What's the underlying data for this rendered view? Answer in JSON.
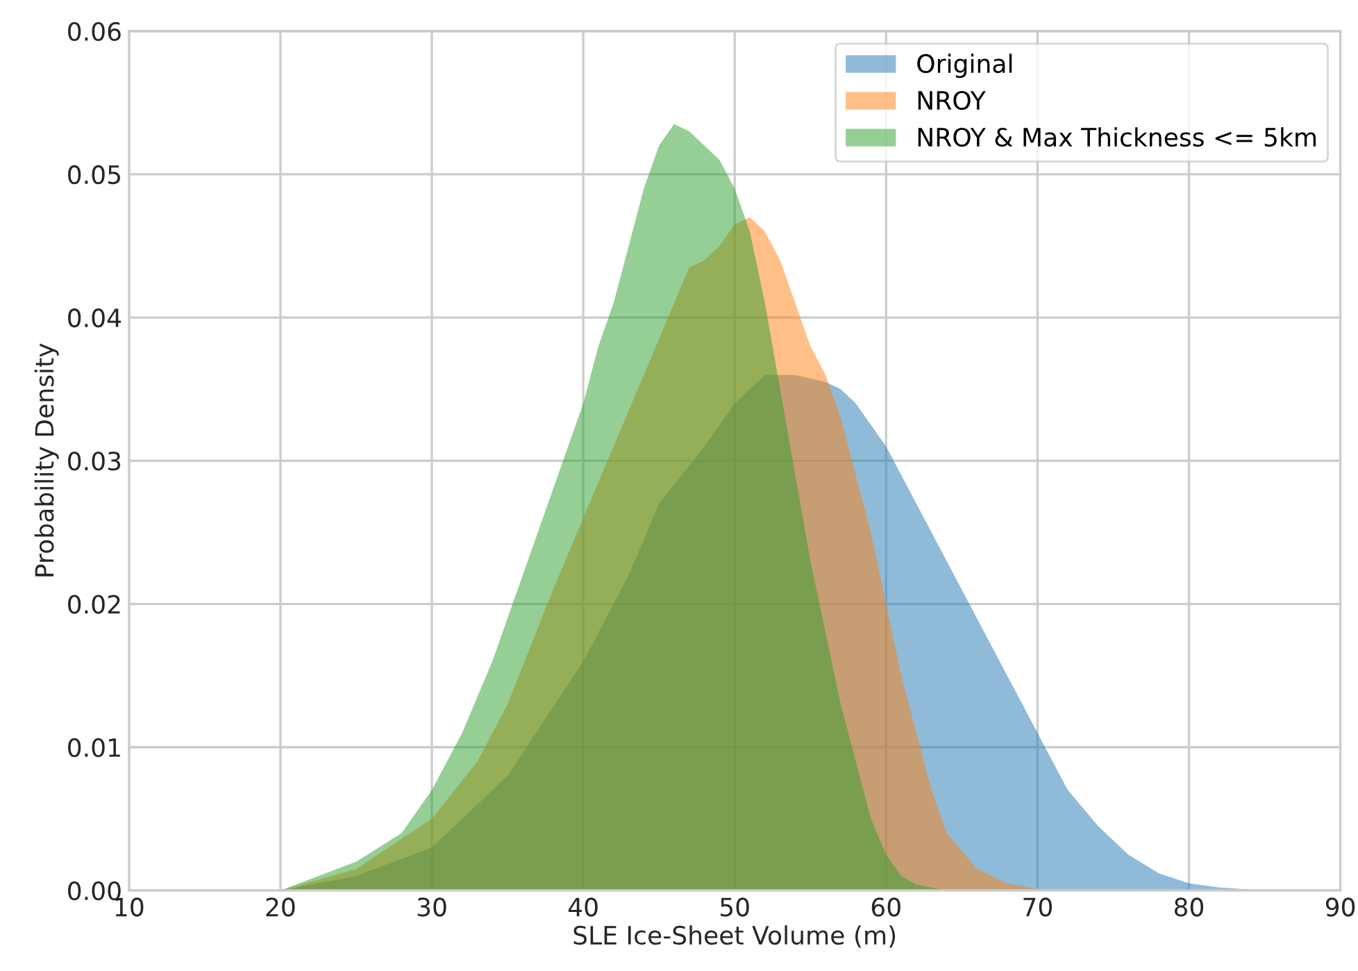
{
  "chart_data": {
    "type": "area",
    "xlabel": "SLE Ice-Sheet Volume (m)",
    "ylabel": "Probability Density",
    "xlim": [
      10,
      90
    ],
    "xticks": [
      10,
      20,
      30,
      40,
      50,
      60,
      70,
      80,
      90
    ],
    "ylim": [
      0,
      0.06
    ],
    "yticks": [
      {
        "value": 0,
        "label": "0.00"
      },
      {
        "value": 0.01,
        "label": "0.01"
      },
      {
        "value": 0.02,
        "label": "0.02"
      },
      {
        "value": 0.03,
        "label": "0.03"
      },
      {
        "value": 0.04,
        "label": "0.04"
      },
      {
        "value": 0.05,
        "label": "0.05"
      },
      {
        "value": 0.06,
        "label": "0.06"
      }
    ],
    "grid": true,
    "legend": "top right",
    "series": [
      {
        "name": "Original",
        "color": "#1f77b4",
        "x": [
          20,
          25,
          30,
          35,
          40,
          43,
          45,
          48,
          50,
          52,
          54,
          56,
          57,
          58,
          60,
          62,
          64,
          66,
          68,
          70,
          72,
          74,
          76,
          78,
          80,
          82,
          85
        ],
        "values": [
          0,
          0.001,
          0.003,
          0.008,
          0.016,
          0.022,
          0.027,
          0.031,
          0.034,
          0.036,
          0.036,
          0.0355,
          0.035,
          0.034,
          0.031,
          0.027,
          0.023,
          0.019,
          0.015,
          0.011,
          0.007,
          0.0045,
          0.0025,
          0.0012,
          0.0005,
          0.0002,
          0
        ]
      },
      {
        "name": "NROY",
        "color": "#ff7f0e",
        "x": [
          20,
          25,
          30,
          33,
          35,
          38,
          40,
          42,
          44,
          46,
          47,
          48,
          49,
          50,
          51,
          52,
          53,
          54,
          55,
          56,
          57,
          58,
          59,
          60,
          61,
          62,
          63,
          64,
          66,
          68,
          70,
          72
        ],
        "values": [
          0,
          0.0015,
          0.005,
          0.009,
          0.013,
          0.021,
          0.026,
          0.031,
          0.036,
          0.041,
          0.0435,
          0.044,
          0.045,
          0.0465,
          0.047,
          0.046,
          0.044,
          0.041,
          0.038,
          0.036,
          0.033,
          0.029,
          0.025,
          0.02,
          0.015,
          0.011,
          0.007,
          0.004,
          0.0015,
          0.0005,
          0.0001,
          0
        ]
      },
      {
        "name": "NROY & Max Thickness <= 5km",
        "color": "#2ca02c",
        "x": [
          20,
          25,
          28,
          30,
          32,
          34,
          36,
          38,
          40,
          41,
          42,
          43,
          44,
          45,
          46,
          47,
          48,
          49,
          50,
          51,
          52,
          53,
          54,
          55,
          56,
          57,
          58,
          59,
          60,
          61,
          62,
          64
        ],
        "values": [
          0,
          0.002,
          0.004,
          0.007,
          0.011,
          0.016,
          0.022,
          0.028,
          0.034,
          0.038,
          0.041,
          0.045,
          0.049,
          0.052,
          0.0535,
          0.053,
          0.052,
          0.051,
          0.049,
          0.046,
          0.041,
          0.035,
          0.029,
          0.023,
          0.018,
          0.013,
          0.009,
          0.005,
          0.0025,
          0.001,
          0.0004,
          0
        ]
      }
    ]
  }
}
